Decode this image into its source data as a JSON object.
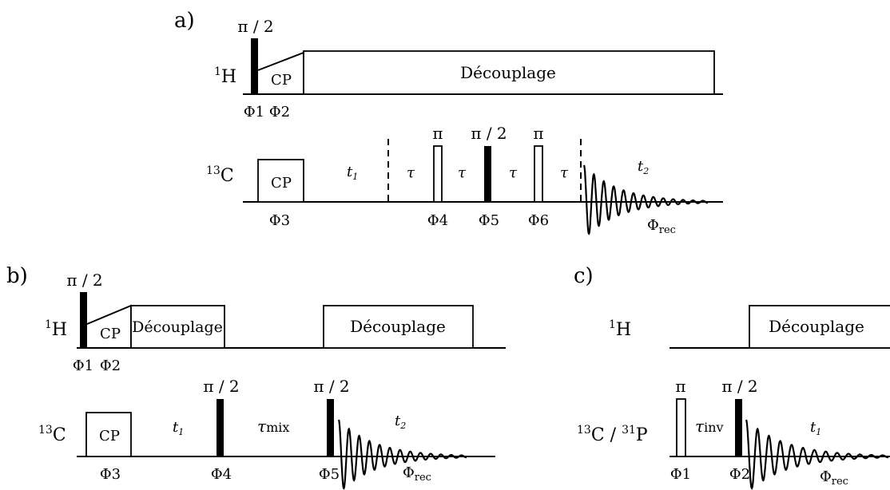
{
  "panels": {
    "a": {
      "label": "a)",
      "h_channel": "1H",
      "c_channel": "13C",
      "pulse_pi2_h": "π / 2",
      "cp_h": "CP",
      "decoupling": "Découplage",
      "phase_h1": "Φ1",
      "phase_h2": "Φ2",
      "cp_c": "CP",
      "phase_c3": "Φ3",
      "t1": "t1",
      "tau": "τ",
      "pi_1": "π",
      "pi2_c": "π / 2",
      "pi_2": "π",
      "phase_4": "Φ4",
      "phase_5": "Φ5",
      "phase_6": "Φ6",
      "t2": "t2",
      "phase_rec": "Φrec"
    },
    "b": {
      "label": "b)",
      "h_channel": "1H",
      "c_channel": "13C",
      "pulse_pi2_h": "π / 2",
      "cp_h": "CP",
      "decoupling_1": "Découplage",
      "decoupling_2": "Découplage",
      "phase_h1": "Φ1",
      "phase_h2": "Φ2",
      "cp_c": "CP",
      "phase_c3": "Φ3",
      "t1": "t1",
      "pi2_1": "π / 2",
      "tau_mix": "τmix",
      "pi2_2": "π / 2",
      "phase_4": "Φ4",
      "phase_5": "Φ5",
      "t2": "t2",
      "phase_rec": "Φrec"
    },
    "c": {
      "label": "c)",
      "h_channel": "1H",
      "c_channel": "13C / 31P",
      "decoupling": "Découplage",
      "pi": "π",
      "tau_inv": "τinv",
      "pi2": "π / 2",
      "phase_1": "Φ1",
      "phase_2": "Φ2",
      "t1": "t1",
      "phase_rec": "Φrec"
    }
  }
}
